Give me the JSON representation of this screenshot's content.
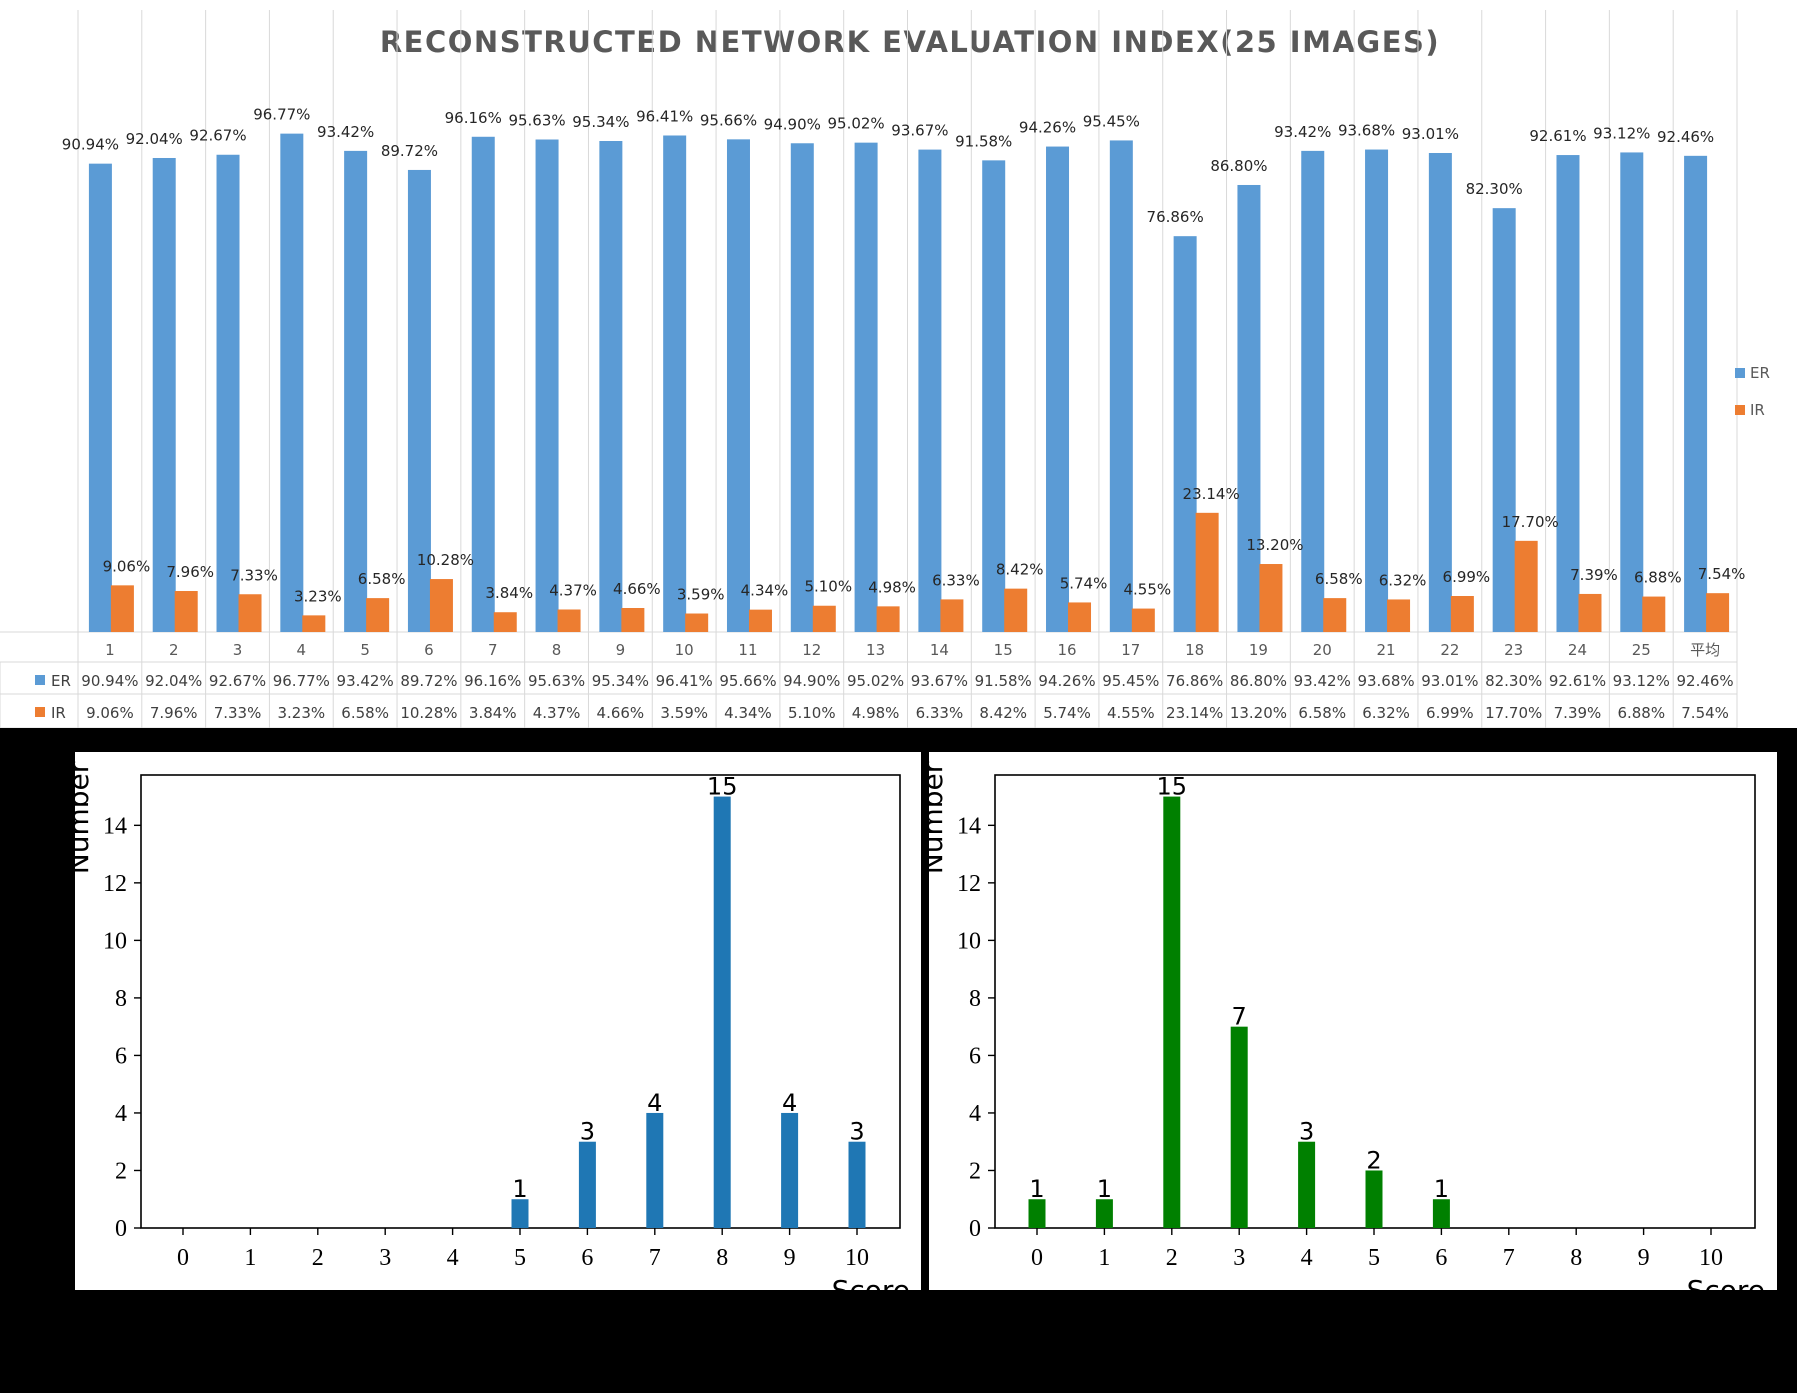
{
  "chart_data": [
    {
      "type": "bar",
      "title": "RECONSTRUCTED NETWORK EVALUATION INDEX(25 IMAGES)",
      "categories": [
        "1",
        "2",
        "3",
        "4",
        "5",
        "6",
        "7",
        "8",
        "9",
        "10",
        "11",
        "12",
        "13",
        "14",
        "15",
        "16",
        "17",
        "18",
        "19",
        "20",
        "21",
        "22",
        "23",
        "24",
        "25",
        "平均"
      ],
      "series": [
        {
          "name": "ER",
          "color": "#5b9bd5",
          "values": [
            90.94,
            92.04,
            92.67,
            96.77,
            93.42,
            89.72,
            96.16,
            95.63,
            95.34,
            96.41,
            95.66,
            94.9,
            95.02,
            93.67,
            91.58,
            94.26,
            95.45,
            76.86,
            86.8,
            93.42,
            93.68,
            93.01,
            82.3,
            92.61,
            93.12,
            92.46
          ],
          "labels": [
            "90.94%",
            "92.04%",
            "92.67%",
            "96.77%",
            "93.42%",
            "89.72%",
            "96.16%",
            "95.63%",
            "95.34%",
            "96.41%",
            "95.66%",
            "94.90%",
            "95.02%",
            "93.67%",
            "91.58%",
            "94.26%",
            "95.45%",
            "76.86%",
            "86.80%",
            "93.42%",
            "93.68%",
            "93.01%",
            "82.30%",
            "92.61%",
            "93.12%",
            "92.46%"
          ]
        },
        {
          "name": "IR",
          "color": "#ed7d31",
          "values": [
            9.06,
            7.96,
            7.33,
            3.23,
            6.58,
            10.28,
            3.84,
            4.37,
            4.66,
            3.59,
            4.34,
            5.1,
            4.98,
            6.33,
            8.42,
            5.74,
            4.55,
            23.14,
            13.2,
            6.58,
            6.32,
            6.99,
            17.7,
            7.39,
            6.88,
            7.54
          ],
          "labels": [
            "9.06%",
            "7.96%",
            "7.33%",
            "3.23%",
            "6.58%",
            "10.28%",
            "3.84%",
            "4.37%",
            "4.66%",
            "3.59%",
            "4.34%",
            "5.10%",
            "4.98%",
            "6.33%",
            "8.42%",
            "5.74%",
            "4.55%",
            "23.14%",
            "13.20%",
            "6.58%",
            "6.32%",
            "6.99%",
            "17.70%",
            "7.39%",
            "6.88%",
            "7.54%"
          ]
        }
      ],
      "ylim": [
        0,
        100
      ],
      "legend": "right",
      "data_table": true,
      "grid": "vertical"
    },
    {
      "type": "bar",
      "color": "#1f77b4",
      "categories": [
        0,
        1,
        2,
        3,
        4,
        5,
        6,
        7,
        8,
        9,
        10
      ],
      "values": [
        0,
        0,
        0,
        0,
        0,
        1,
        3,
        4,
        15,
        4,
        3
      ],
      "ylabel": "Number",
      "xlabel": "Score",
      "yticks": [
        0,
        2,
        4,
        6,
        8,
        10,
        12,
        14
      ],
      "ylim": [
        0,
        15.75
      ],
      "grid": false
    },
    {
      "type": "bar",
      "color": "#008000",
      "categories": [
        0,
        1,
        2,
        3,
        4,
        5,
        6,
        7,
        8,
        9,
        10
      ],
      "values": [
        1,
        1,
        15,
        7,
        3,
        2,
        1,
        0,
        0,
        0,
        0
      ],
      "ylabel": "Number",
      "xlabel": "Score",
      "yticks": [
        0,
        2,
        4,
        6,
        8,
        10,
        12,
        14
      ],
      "ylim": [
        0,
        15.75
      ],
      "grid": false
    }
  ]
}
